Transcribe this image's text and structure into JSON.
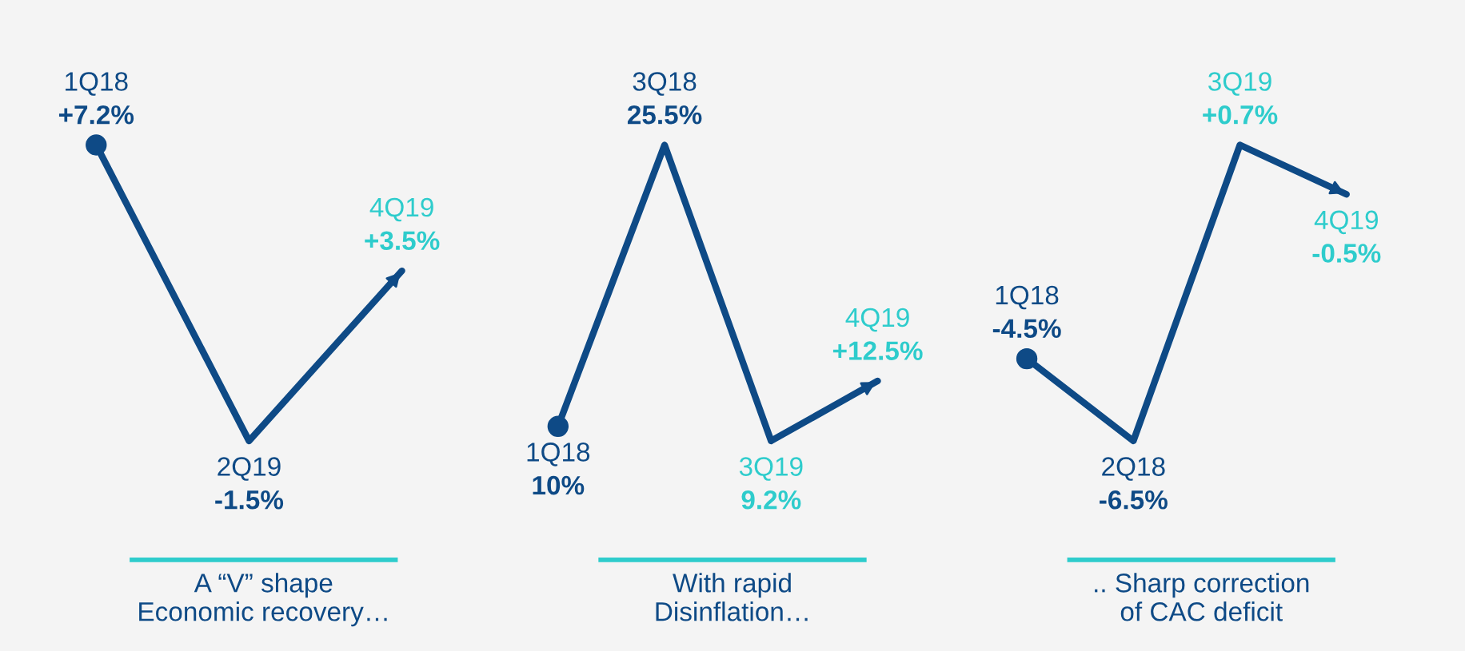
{
  "chart_data": [
    {
      "type": "line",
      "xlabel": "A “V” shape\nEconomic recovery…",
      "categories": [
        null,
        null,
        null
      ],
      "tick_labels": false,
      "marker": "none",
      "series": [
        {
          "color": "#0e4a86",
          "values": [
            7.2,
            -1.5,
            3.5
          ],
          "colors": [
            "#0e4a86",
            "#0e4a86",
            "#2ecccc"
          ],
          "value_labels": [
            "1Q18\n+7.2%",
            "2Q19\n-1.5%",
            "4Q19\n+3.5%"
          ]
        }
      ]
    },
    {
      "type": "line",
      "xlabel": "With rapid\nDisinflation…",
      "categories": [
        null,
        null,
        null,
        null
      ],
      "tick_labels": false,
      "marker": "none",
      "series": [
        {
          "color": "#0e4a86",
          "values": [
            10,
            25.5,
            9.2,
            12.5
          ],
          "colors": [
            "#0e4a86",
            "#0e4a86",
            "#2ecccc",
            "#2ecccc"
          ],
          "value_labels": [
            "1Q18\n10%",
            "3Q18\n25.5%",
            "3Q19\n9.2%",
            "4Q19\n+12.5%"
          ]
        }
      ]
    },
    {
      "type": "line",
      "xlabel": ".. Sharp correction\nof CAC deficit",
      "categories": [
        null,
        null,
        null,
        null
      ],
      "tick_labels": false,
      "marker": "none",
      "series": [
        {
          "color": "#0e4a86",
          "values": [
            -4.5,
            -6.5,
            0.7,
            -0.5
          ],
          "colors": [
            "#0e4a86",
            "#0e4a86",
            "#2ecccc",
            "#2ecccc"
          ],
          "value_labels": [
            "1Q18\n-4.5%",
            "2Q18\n-6.5%",
            "3Q19\n+0.7%",
            "4Q19\n-0.5%"
          ]
        }
      ]
    }
  ]
}
